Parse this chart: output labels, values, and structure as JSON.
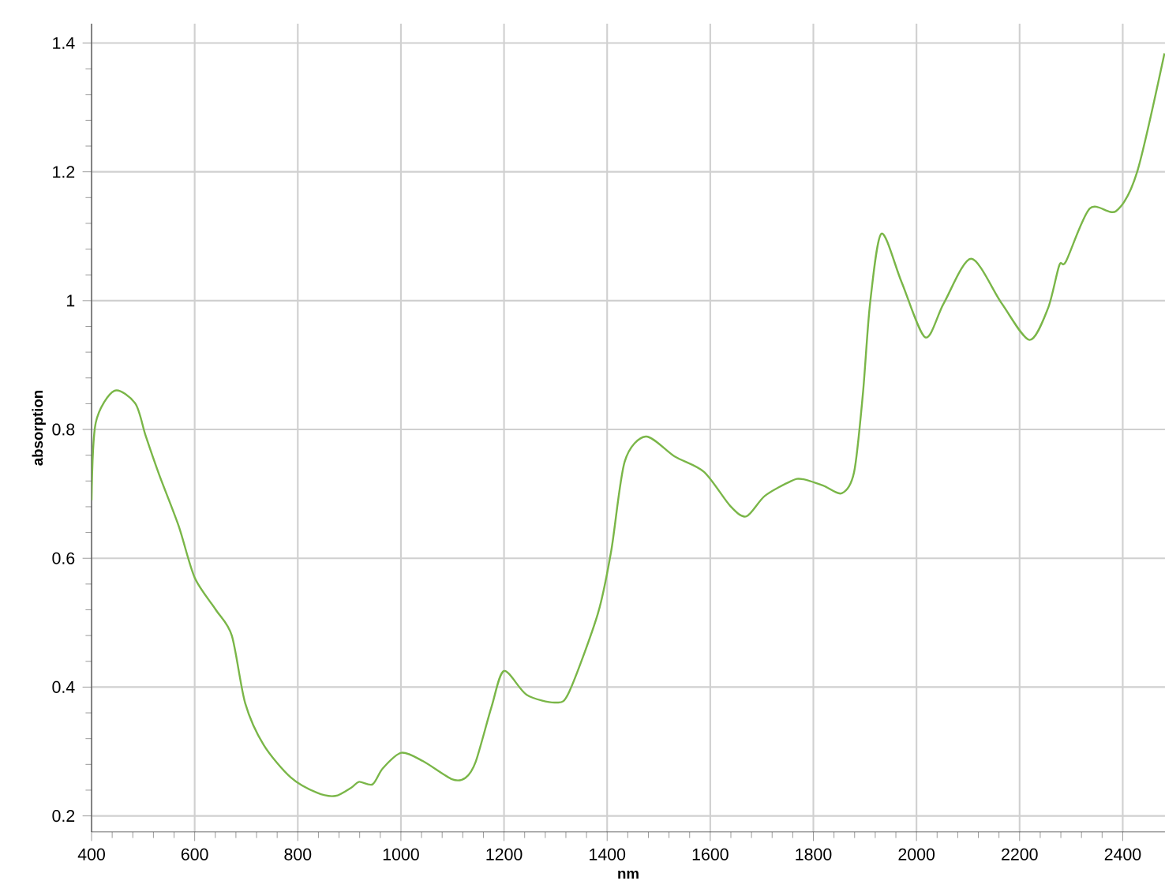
{
  "chart_data": {
    "type": "line",
    "xlabel": "nm",
    "ylabel": "absorption",
    "x": [
      400,
      408,
      444,
      485,
      505,
      531,
      569,
      600,
      641,
      672,
      698,
      734,
      786,
      837,
      873,
      904,
      919,
      945,
      965,
      1001,
      1043,
      1099,
      1125,
      1145,
      1176,
      1200,
      1244,
      1300,
      1326,
      1382,
      1408,
      1434,
      1475,
      1531,
      1588,
      1639,
      1670,
      1706,
      1757,
      1778,
      1819,
      1855,
      1879,
      1896,
      1910,
      1932,
      1971,
      2017,
      2053,
      2106,
      2165,
      2219,
      2255,
      2277,
      2290,
      2336,
      2387,
      2428,
      2481
    ],
    "series": [
      {
        "color": "#7ab648",
        "values": [
          0.69,
          0.81,
          0.86,
          0.84,
          0.79,
          0.73,
          0.65,
          0.57,
          0.52,
          0.48,
          0.375,
          0.31,
          0.26,
          0.236,
          0.231,
          0.244,
          0.253,
          0.249,
          0.274,
          0.298,
          0.285,
          0.257,
          0.259,
          0.284,
          0.37,
          0.425,
          0.388,
          0.376,
          0.392,
          0.514,
          0.612,
          0.75,
          0.789,
          0.758,
          0.734,
          0.681,
          0.665,
          0.697,
          0.72,
          0.723,
          0.713,
          0.701,
          0.734,
          0.855,
          0.996,
          1.104,
          1.029,
          0.943,
          0.996,
          1.065,
          0.996,
          0.939,
          0.988,
          1.055,
          1.061,
          1.143,
          1.139,
          1.2,
          1.384
        ]
      }
    ],
    "xlim": [
      400,
      2482
    ],
    "ylim": [
      0.175,
      1.43
    ],
    "xticks": [
      400,
      600,
      800,
      1000,
      1200,
      1400,
      1600,
      1800,
      2000,
      2200,
      2400
    ],
    "yticks": [
      0.2,
      0.4,
      0.6,
      0.8,
      1,
      1.2,
      1.4
    ],
    "grid": true,
    "marker": "none",
    "line_style": "solid"
  }
}
